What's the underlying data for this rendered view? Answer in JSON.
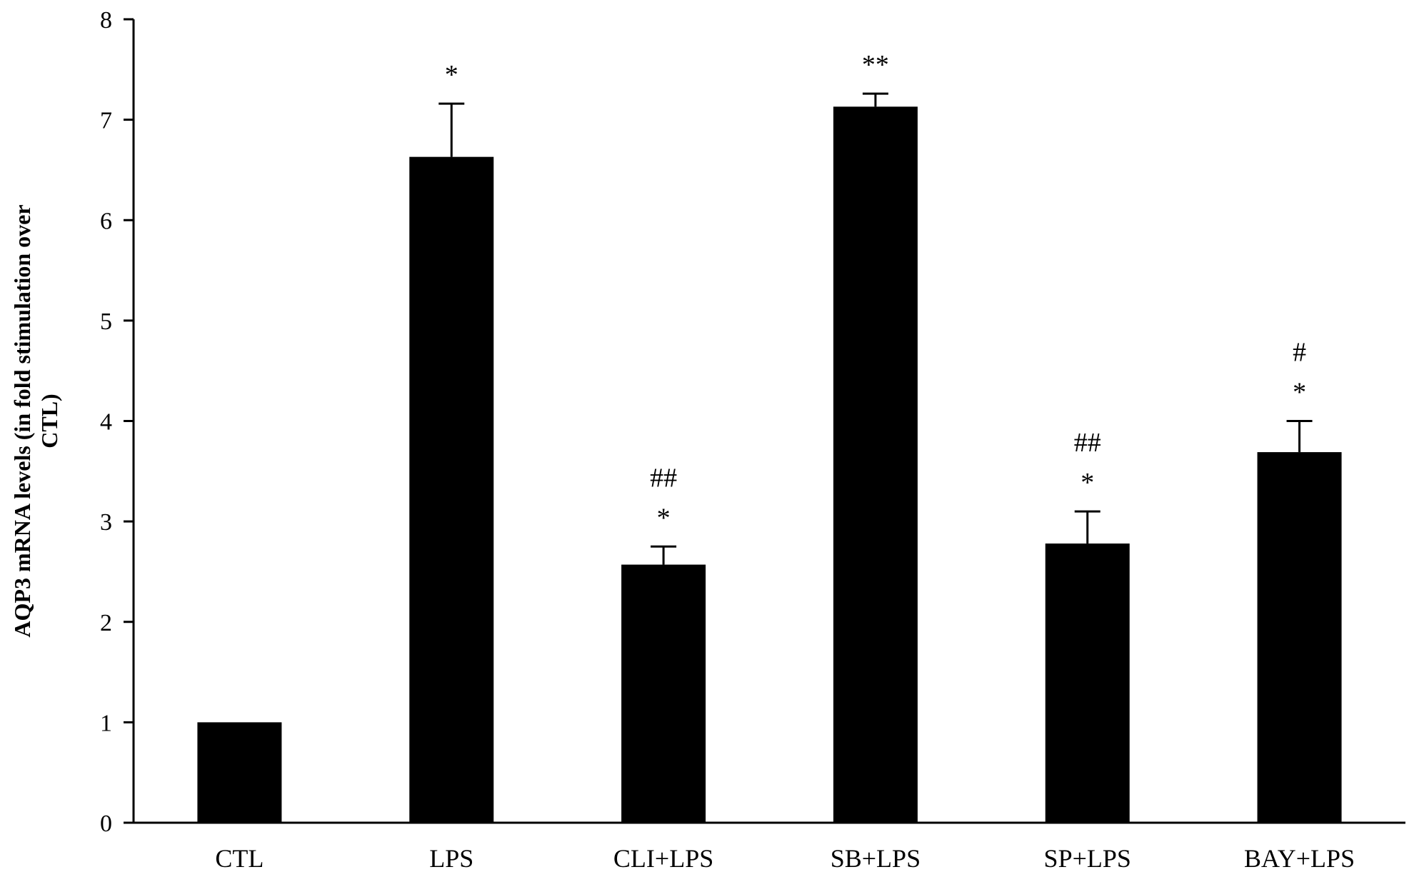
{
  "chart_data": {
    "type": "bar",
    "title": "",
    "xlabel": "",
    "ylabel_lines": [
      "AQP3 mRNA levels (in fold stimulation over",
      "CTL)"
    ],
    "ylim": [
      0,
      8
    ],
    "yticks": [
      "0",
      "1",
      "2",
      "3",
      "4",
      "5",
      "6",
      "7",
      "8"
    ],
    "categories": [
      "CTL",
      "LPS",
      "CLI+LPS",
      "SB+LPS",
      "SP+LPS",
      "BAY+LPS"
    ],
    "values": [
      1.0,
      6.63,
      2.57,
      7.13,
      2.78,
      3.69
    ],
    "errors": [
      0,
      0.53,
      0.18,
      0.13,
      0.32,
      0.31
    ],
    "annotations": [
      [],
      [
        "*"
      ],
      [
        "*",
        "##"
      ],
      [
        "**"
      ],
      [
        "*",
        "##"
      ],
      [
        "*",
        "#"
      ]
    ],
    "bar_color": "#000000",
    "grid": false,
    "legend": "none"
  }
}
